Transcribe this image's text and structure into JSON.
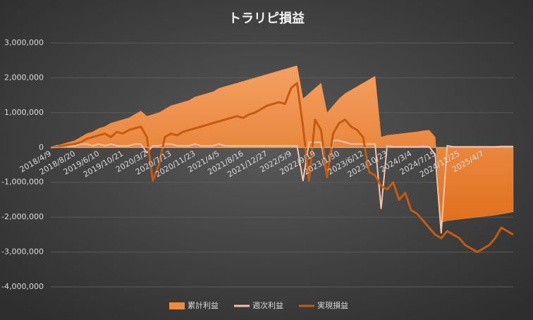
{
  "chart_data": {
    "type": "area-line",
    "title": "トラリピ損益",
    "categories": [
      "2018/4/9",
      null,
      null,
      null,
      "2018/8/20",
      null,
      null,
      null,
      "2019/6/10",
      null,
      null,
      null,
      "2019/10/21",
      null,
      null,
      null,
      "2020/3/2",
      null,
      null,
      null,
      "2020/7/13",
      null,
      null,
      null,
      "2020/11/23",
      null,
      null,
      null,
      "2021/4/5",
      null,
      null,
      null,
      "2021/8/16",
      null,
      null,
      null,
      "2021/12/27",
      null,
      null,
      null,
      "2022/5/9",
      null,
      null,
      null,
      "2022/9/19",
      null,
      null,
      null,
      "2023/1/30",
      null,
      null,
      null,
      "2023/6/12",
      null,
      null,
      null,
      "2023/10/23",
      null,
      null,
      null,
      "2024/3/4",
      null,
      null,
      null,
      "2024/7/15",
      null,
      null,
      null,
      "2024/11/25",
      null,
      null,
      null,
      "2025/4/7",
      null,
      null,
      null,
      null,
      null
    ],
    "series": [
      {
        "name": "累計利益",
        "kind": "area",
        "color": "#f08a3c",
        "values": [
          0,
          50000,
          100000,
          150000,
          200000,
          300000,
          400000,
          450000,
          550000,
          600000,
          700000,
          750000,
          800000,
          850000,
          950000,
          1050000,
          900000,
          950000,
          1000000,
          1100000,
          1200000,
          1250000,
          1300000,
          1350000,
          1450000,
          1500000,
          1550000,
          1600000,
          1700000,
          1750000,
          1800000,
          1850000,
          1900000,
          1950000,
          2000000,
          2050000,
          2100000,
          2150000,
          2200000,
          2250000,
          2300000,
          2350000,
          1400000,
          1550000,
          1700000,
          1850000,
          1000000,
          1200000,
          1400000,
          1550000,
          1650000,
          1750000,
          1850000,
          1950000,
          2050000,
          300000,
          350000,
          370000,
          390000,
          410000,
          430000,
          450000,
          480000,
          500000,
          300000,
          -2150000,
          -2100000,
          -2080000,
          -2060000,
          -2040000,
          -2020000,
          -2000000,
          -1980000,
          -1960000,
          -1940000,
          -1910000,
          -1880000,
          -1850000
        ]
      },
      {
        "name": "週次利益",
        "kind": "line",
        "color": "#f7c3aa",
        "values": [
          0,
          50000,
          50000,
          50000,
          50000,
          100000,
          100000,
          50000,
          100000,
          50000,
          100000,
          50000,
          50000,
          50000,
          100000,
          100000,
          -150000,
          50000,
          50000,
          100000,
          100000,
          50000,
          50000,
          50000,
          100000,
          50000,
          50000,
          50000,
          100000,
          50000,
          50000,
          50000,
          50000,
          50000,
          50000,
          50000,
          50000,
          50000,
          50000,
          50000,
          50000,
          50000,
          -950000,
          150000,
          150000,
          150000,
          -850000,
          200000,
          200000,
          150000,
          100000,
          100000,
          100000,
          100000,
          100000,
          -1750000,
          50000,
          20000,
          20000,
          20000,
          20000,
          20000,
          30000,
          20000,
          -200000,
          -2450000,
          50000,
          20000,
          20000,
          20000,
          20000,
          20000,
          20000,
          20000,
          20000,
          30000,
          30000,
          30000
        ]
      },
      {
        "name": "実現損益",
        "kind": "line",
        "color": "#c55a11",
        "values": [
          0,
          20000,
          50000,
          80000,
          100000,
          150000,
          250000,
          300000,
          350000,
          400000,
          300000,
          450000,
          400000,
          500000,
          550000,
          600000,
          300000,
          -950000,
          -500000,
          300000,
          400000,
          350000,
          450000,
          500000,
          550000,
          600000,
          650000,
          700000,
          750000,
          800000,
          850000,
          900000,
          850000,
          950000,
          1000000,
          1100000,
          1200000,
          1250000,
          1300000,
          1250000,
          1700000,
          1850000,
          600000,
          -950000,
          800000,
          500000,
          -850000,
          400000,
          700000,
          800000,
          600000,
          500000,
          300000,
          -700000,
          -800000,
          -1100000,
          -1200000,
          -1000000,
          -1500000,
          -1300000,
          -1800000,
          -1900000,
          -2100000,
          -2300000,
          -2500000,
          -2600000,
          -2400000,
          -2500000,
          -2600000,
          -2800000,
          -2900000,
          -3000000,
          -2900000,
          -2800000,
          -2600000,
          -2300000,
          -2400000,
          -2500000
        ]
      }
    ],
    "ylim": [
      -4000000,
      3000000
    ],
    "yticks": [
      {
        "value": -4000000,
        "label": "-4,000,000"
      },
      {
        "value": -3000000,
        "label": "-3,000,000"
      },
      {
        "value": -2000000,
        "label": "-2,000,000"
      },
      {
        "value": -1000000,
        "label": "-1,000,000"
      },
      0,
      {
        "value": 1000000,
        "label": "1,000,000"
      },
      {
        "value": 2000000,
        "label": "2,000,000"
      },
      {
        "value": 3000000,
        "label": "3,000,000"
      }
    ],
    "grid": true,
    "legend": "bottom"
  }
}
